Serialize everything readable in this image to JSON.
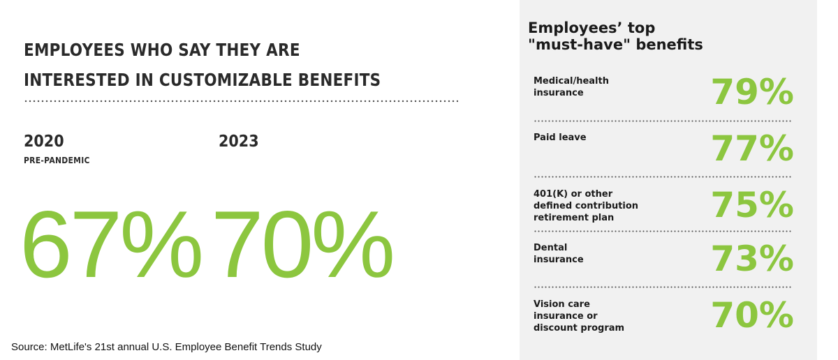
{
  "left": {
    "title_line1": "EMPLOYEES WHO SAY THEY ARE",
    "title_line2": "INTERESTED IN CUSTOMIZABLE BENEFITS",
    "year_a": "2020",
    "year_a_note": "PRE-PANDEMIC",
    "year_b": "2023",
    "pct_a": "67%",
    "pct_b": "70%"
  },
  "source": "Source: MetLife's 21st annual U.S. Employee Benefit Trends Study",
  "right": {
    "title_line1": "Employees’ top",
    "title_line2": "\"must-have\" benefits",
    "items": [
      {
        "lines": [
          "Medical/health",
          "insurance"
        ],
        "pct": "79%"
      },
      {
        "lines": [
          "Paid leave"
        ],
        "pct": "77%"
      },
      {
        "lines": [
          "401(K) or other",
          "defined contribution",
          "retirement plan"
        ],
        "pct": "75%"
      },
      {
        "lines": [
          "Dental",
          "insurance"
        ],
        "pct": "73%"
      },
      {
        "lines": [
          "Vision care",
          "insurance or",
          "discount program"
        ],
        "pct": "70%"
      }
    ]
  },
  "colors": {
    "accent_green": "#8cc63f",
    "panel_bg": "#f1f1f1",
    "text_dark": "#2a2a2a"
  }
}
